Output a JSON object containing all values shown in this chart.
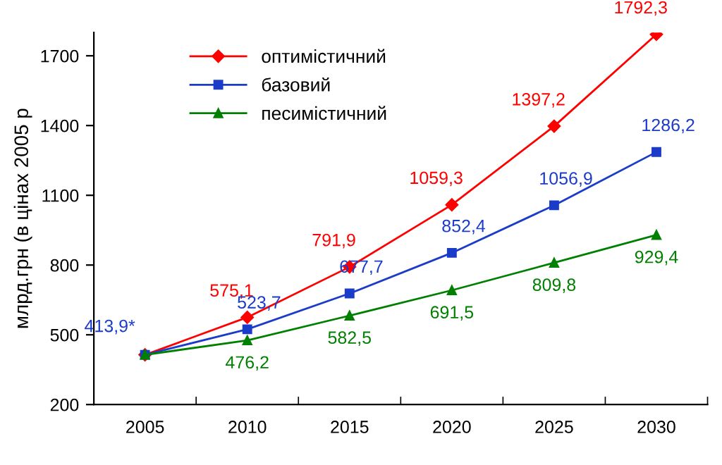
{
  "chart_data": {
    "type": "line",
    "ylabel": "млрд.грн (в цінах 2005 р",
    "categories": [
      "2005",
      "2010",
      "2015",
      "2020",
      "2025",
      "2030"
    ],
    "series": [
      {
        "name": "оптимістичний",
        "color": "#ff0000",
        "marker": "diamond",
        "values": [
          413.9,
          575.1,
          791.9,
          1059.3,
          1397.2,
          1792.3
        ],
        "value_labels": [
          null,
          "575,1",
          "791,9",
          "1059,3",
          "1397,2",
          "1792,3"
        ]
      },
      {
        "name": "базовий",
        "color": "#1a3cc8",
        "marker": "square",
        "values": [
          413.9,
          523.7,
          677.7,
          852.4,
          1056.9,
          1286.2
        ],
        "value_labels": [
          "413,9*",
          "523,7",
          "677,7",
          "852,4",
          "1056,9",
          "1286,2"
        ]
      },
      {
        "name": "песимістичний",
        "color": "#008000",
        "marker": "triangle",
        "values": [
          413.9,
          476.2,
          582.5,
          691.5,
          809.8,
          929.4
        ],
        "value_labels": [
          null,
          "476,2",
          "582,5",
          "691,5",
          "809,8",
          "929,4"
        ]
      }
    ],
    "ylim": [
      200,
      1800
    ],
    "yticks": [
      200,
      500,
      800,
      1100,
      1400,
      1700
    ],
    "grid": false,
    "legend": "top left",
    "line_style": "solid"
  }
}
